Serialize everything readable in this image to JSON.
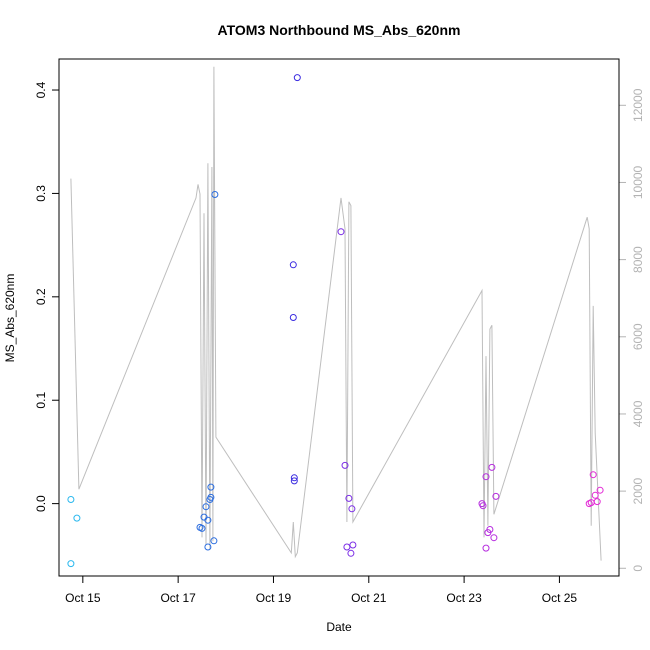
{
  "chart_data": {
    "type": "scatter",
    "title": "ATOM3 Northbound MS_Abs_620nm",
    "xlabel": "Date",
    "ylabel": "MS_Abs_620nm",
    "xlim": [
      "2022-10-14T12:00",
      "2022-10-26T06:00"
    ],
    "ylim": [
      -0.07,
      0.43
    ],
    "y2lim": [
      -200,
      13200
    ],
    "x_ticks": [
      {
        "label": "Oct 15",
        "value": "2022-10-15T00:00"
      },
      {
        "label": "Oct 17",
        "value": "2022-10-17T00:00"
      },
      {
        "label": "Oct 19",
        "value": "2022-10-19T00:00"
      },
      {
        "label": "Oct 21",
        "value": "2022-10-21T00:00"
      },
      {
        "label": "Oct 23",
        "value": "2022-10-23T00:00"
      },
      {
        "label": "Oct 25",
        "value": "2022-10-25T00:00"
      }
    ],
    "y_ticks": [
      {
        "label": "0.0",
        "value": 0.0
      },
      {
        "label": "0.1",
        "value": 0.1
      },
      {
        "label": "0.2",
        "value": 0.2
      },
      {
        "label": "0.3",
        "value": 0.3
      },
      {
        "label": "0.4",
        "value": 0.4
      }
    ],
    "y2_ticks": [
      {
        "label": "0",
        "value": 0
      },
      {
        "label": "2000",
        "value": 2000
      },
      {
        "label": "4000",
        "value": 4000
      },
      {
        "label": "6000",
        "value": 6000
      },
      {
        "label": "8000",
        "value": 8000
      },
      {
        "label": "10000",
        "value": 10000
      },
      {
        "label": "12000",
        "value": 12000
      }
    ],
    "grid": false,
    "points": [
      {
        "x": "2022-10-14T18:00",
        "y": 0.004,
        "color": "#2ab8ee"
      },
      {
        "x": "2022-10-14T21:00",
        "y": -0.014,
        "color": "#2ab8ee"
      },
      {
        "x": "2022-10-14T18:00",
        "y": -0.058,
        "color": "#2ab8ee"
      },
      {
        "x": "2022-10-17T11:00",
        "y": -0.023,
        "color": "#2b6ddf"
      },
      {
        "x": "2022-10-17T12:00",
        "y": -0.024,
        "color": "#2b6ddf"
      },
      {
        "x": "2022-10-17T13:00",
        "y": -0.013,
        "color": "#2b6ddf"
      },
      {
        "x": "2022-10-17T14:00",
        "y": -0.003,
        "color": "#2b6ddf"
      },
      {
        "x": "2022-10-17T15:00",
        "y": -0.016,
        "color": "#2b6ddf"
      },
      {
        "x": "2022-10-17T15:00",
        "y": -0.042,
        "color": "#2b6ddf"
      },
      {
        "x": "2022-10-17T16:00",
        "y": 0.004,
        "color": "#2b6ddf"
      },
      {
        "x": "2022-10-17T16:30",
        "y": 0.006,
        "color": "#2b6ddf"
      },
      {
        "x": "2022-10-17T16:30",
        "y": 0.016,
        "color": "#2b6ddf"
      },
      {
        "x": "2022-10-17T18:00",
        "y": -0.036,
        "color": "#2b6ddf"
      },
      {
        "x": "2022-10-17T18:30",
        "y": 0.299,
        "color": "#2b6ddf"
      },
      {
        "x": "2022-10-19T10:00",
        "y": 0.231,
        "color": "#3a2be0"
      },
      {
        "x": "2022-10-19T10:00",
        "y": 0.18,
        "color": "#3a2be0"
      },
      {
        "x": "2022-10-19T10:30",
        "y": 0.025,
        "color": "#3a2be0"
      },
      {
        "x": "2022-10-19T10:30",
        "y": 0.022,
        "color": "#3a2be0"
      },
      {
        "x": "2022-10-19T12:00",
        "y": 0.412,
        "color": "#3a2be0"
      },
      {
        "x": "2022-10-20T10:00",
        "y": 0.263,
        "color": "#7b2de6"
      },
      {
        "x": "2022-10-20T12:00",
        "y": 0.037,
        "color": "#7b2de6"
      },
      {
        "x": "2022-10-20T13:00",
        "y": -0.042,
        "color": "#7b2de6"
      },
      {
        "x": "2022-10-20T14:00",
        "y": 0.005,
        "color": "#7b2de6"
      },
      {
        "x": "2022-10-20T15:00",
        "y": -0.048,
        "color": "#7b2de6"
      },
      {
        "x": "2022-10-20T15:30",
        "y": -0.005,
        "color": "#7b2de6"
      },
      {
        "x": "2022-10-20T16:00",
        "y": -0.04,
        "color": "#7b2de6"
      },
      {
        "x": "2022-10-23T09:00",
        "y": 0.0,
        "color": "#b62cdf"
      },
      {
        "x": "2022-10-23T09:30",
        "y": -0.002,
        "color": "#b62cdf"
      },
      {
        "x": "2022-10-23T11:00",
        "y": 0.026,
        "color": "#b62cdf"
      },
      {
        "x": "2022-10-23T11:00",
        "y": -0.043,
        "color": "#b62cdf"
      },
      {
        "x": "2022-10-23T12:00",
        "y": -0.028,
        "color": "#b62cdf"
      },
      {
        "x": "2022-10-23T13:00",
        "y": -0.025,
        "color": "#b62cdf"
      },
      {
        "x": "2022-10-23T14:00",
        "y": 0.035,
        "color": "#b62cdf"
      },
      {
        "x": "2022-10-23T15:00",
        "y": -0.033,
        "color": "#b62cdf"
      },
      {
        "x": "2022-10-23T16:00",
        "y": 0.007,
        "color": "#b62cdf"
      },
      {
        "x": "2022-10-25T15:00",
        "y": 0.0,
        "color": "#e32bd6"
      },
      {
        "x": "2022-10-25T16:00",
        "y": 0.001,
        "color": "#e32bd6"
      },
      {
        "x": "2022-10-25T17:00",
        "y": 0.028,
        "color": "#e32bd6"
      },
      {
        "x": "2022-10-25T18:00",
        "y": 0.008,
        "color": "#e32bd6"
      },
      {
        "x": "2022-10-25T19:00",
        "y": 0.002,
        "color": "#e32bd6"
      },
      {
        "x": "2022-10-25T20:30",
        "y": 0.013,
        "color": "#e32bd6"
      }
    ],
    "line_series": {
      "axis": "right",
      "color": "#bebebe",
      "points": [
        {
          "x": "2022-10-14T18:00",
          "y": 10100
        },
        {
          "x": "2022-10-14T22:00",
          "y": 2050
        },
        {
          "x": "2022-10-17T09:00",
          "y": 9600
        },
        {
          "x": "2022-10-17T10:00",
          "y": 9950
        },
        {
          "x": "2022-10-17T11:00",
          "y": 9700
        },
        {
          "x": "2022-10-17T12:00",
          "y": 800
        },
        {
          "x": "2022-10-17T13:00",
          "y": 9200
        },
        {
          "x": "2022-10-17T14:00",
          "y": 600
        },
        {
          "x": "2022-10-17T15:00",
          "y": 10500
        },
        {
          "x": "2022-10-17T16:00",
          "y": 500
        },
        {
          "x": "2022-10-17T17:00",
          "y": 10400
        },
        {
          "x": "2022-10-17T17:30",
          "y": 700
        },
        {
          "x": "2022-10-17T18:00",
          "y": 13000
        },
        {
          "x": "2022-10-17T19:00",
          "y": 3400
        },
        {
          "x": "2022-10-19T09:00",
          "y": 400
        },
        {
          "x": "2022-10-19T10:00",
          "y": 1200
        },
        {
          "x": "2022-10-19T11:00",
          "y": 300
        },
        {
          "x": "2022-10-19T12:00",
          "y": 400
        },
        {
          "x": "2022-10-20T10:00",
          "y": 9600
        },
        {
          "x": "2022-10-20T12:00",
          "y": 8800
        },
        {
          "x": "2022-10-20T13:00",
          "y": 1200
        },
        {
          "x": "2022-10-20T14:00",
          "y": 9500
        },
        {
          "x": "2022-10-20T15:00",
          "y": 9400
        },
        {
          "x": "2022-10-20T16:00",
          "y": 1200
        },
        {
          "x": "2022-10-23T09:00",
          "y": 7200
        },
        {
          "x": "2022-10-23T10:00",
          "y": 800
        },
        {
          "x": "2022-10-23T11:00",
          "y": 5500
        },
        {
          "x": "2022-10-23T12:00",
          "y": 1100
        },
        {
          "x": "2022-10-23T13:00",
          "y": 6200
        },
        {
          "x": "2022-10-23T14:00",
          "y": 6300
        },
        {
          "x": "2022-10-23T15:00",
          "y": 1400
        },
        {
          "x": "2022-10-25T14:00",
          "y": 9100
        },
        {
          "x": "2022-10-25T15:00",
          "y": 8800
        },
        {
          "x": "2022-10-25T16:00",
          "y": 1100
        },
        {
          "x": "2022-10-25T17:00",
          "y": 6800
        },
        {
          "x": "2022-10-25T18:00",
          "y": 3500
        },
        {
          "x": "2022-10-25T21:00",
          "y": 200
        }
      ]
    }
  }
}
